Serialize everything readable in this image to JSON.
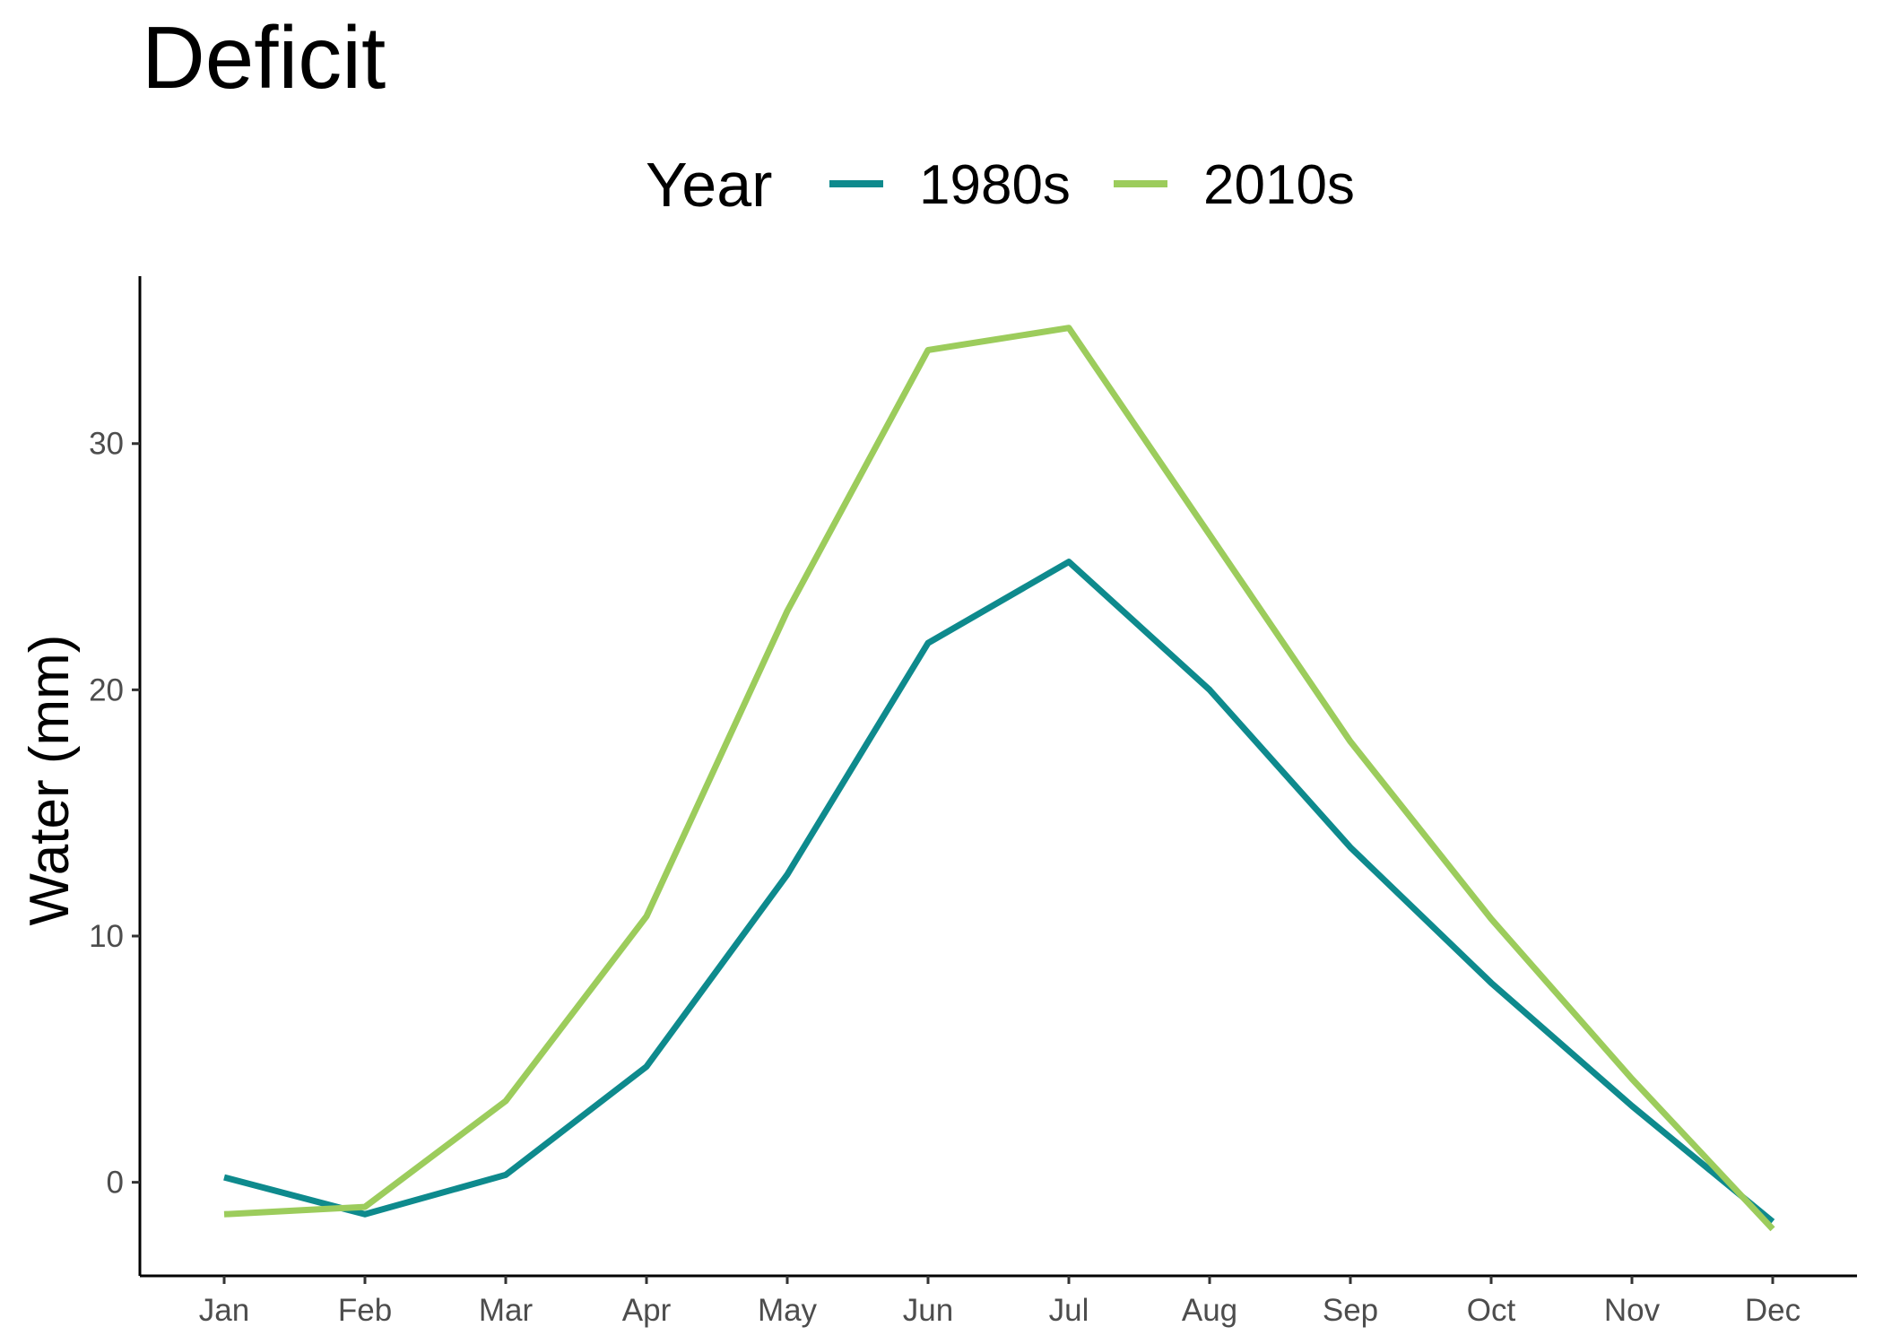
{
  "chart_data": {
    "type": "line",
    "title": "Deficit",
    "xlabel": "",
    "ylabel": "Water (mm)",
    "legend_title": "Year",
    "legend_position": "top",
    "grid": false,
    "categories": [
      "Jan",
      "Feb",
      "Mar",
      "Apr",
      "May",
      "Jun",
      "Jul",
      "Aug",
      "Sep",
      "Oct",
      "Nov",
      "Dec"
    ],
    "ylim": [
      -3.8,
      36.8
    ],
    "yticks": [
      0,
      10,
      20,
      30
    ],
    "series": [
      {
        "name": "1980s",
        "color": "#0e8a8d",
        "values": [
          0.2,
          -1.3,
          0.3,
          4.7,
          12.5,
          21.9,
          25.2,
          20.0,
          13.6,
          8.1,
          3.1,
          -1.6
        ]
      },
      {
        "name": "2010s",
        "color": "#9ccc5c",
        "values": [
          -1.3,
          -1.0,
          3.3,
          10.8,
          23.2,
          33.8,
          34.7,
          26.3,
          17.9,
          10.7,
          4.2,
          -1.9
        ]
      }
    ]
  }
}
